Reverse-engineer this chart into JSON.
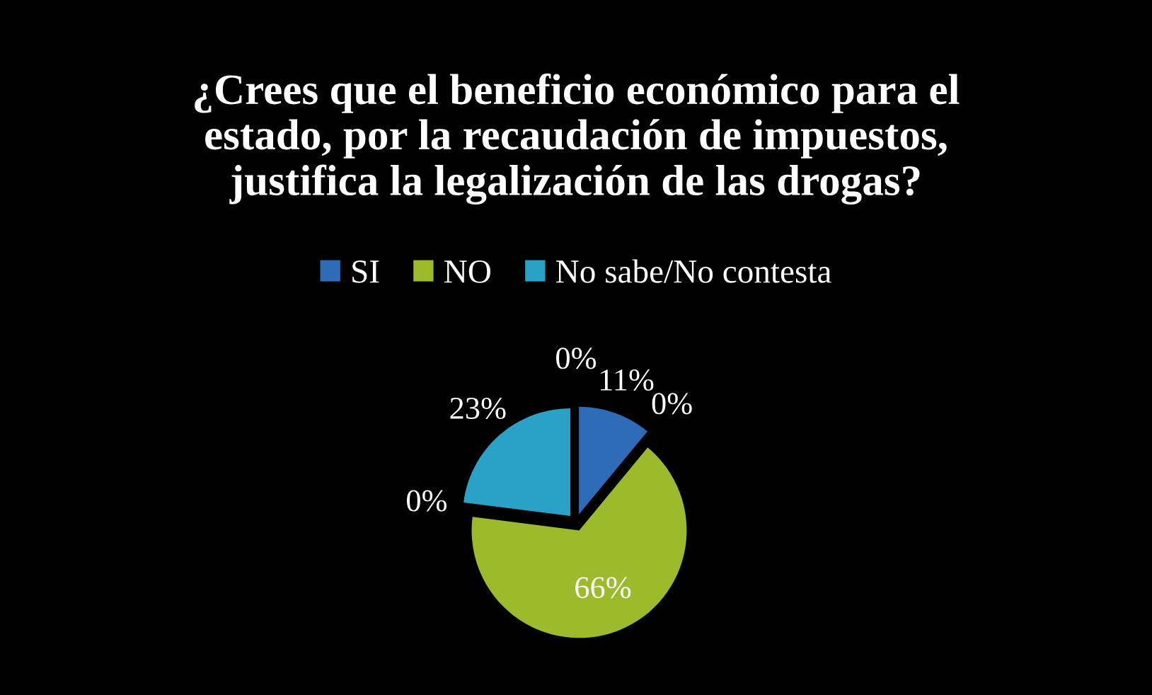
{
  "chart_data": {
    "type": "pie",
    "title": "¿Crees que el beneficio económico para el estado, por la recaudación de impuestos, justifica la legalización de las drogas?",
    "categories": [
      "SI",
      "NO",
      "No sabe/No contesta"
    ],
    "values": [
      11,
      66,
      23
    ],
    "colors": [
      "#2f6cb8",
      "#9bbb2c",
      "#2aa2c8"
    ],
    "value_labels": [
      "11%",
      "66%",
      "23%"
    ],
    "annotations": [
      "0%",
      "0%",
      "0%"
    ],
    "legend": "top"
  }
}
